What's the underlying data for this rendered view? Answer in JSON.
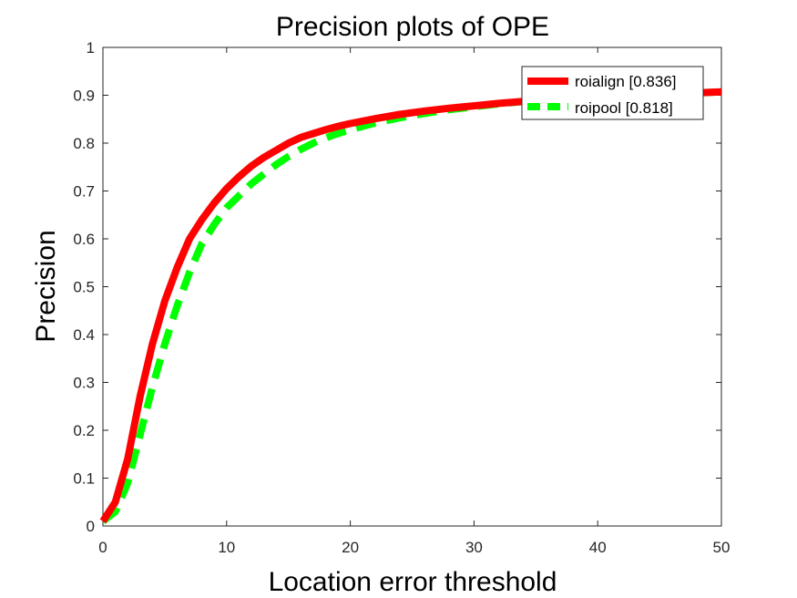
{
  "chart_data": {
    "type": "line",
    "title": "Precision plots of OPE",
    "xlabel": "Location error threshold",
    "ylabel": "Precision",
    "xlim": [
      0,
      50
    ],
    "ylim": [
      0,
      1
    ],
    "xticks": [
      "0",
      "10",
      "20",
      "30",
      "40",
      "50"
    ],
    "yticks": [
      "0",
      "0.1",
      "0.2",
      "0.3",
      "0.4",
      "0.5",
      "0.6",
      "0.7",
      "0.8",
      "0.9",
      "1"
    ],
    "grid": false,
    "legend_position": "top-right",
    "series": [
      {
        "name": "roialign [0.836]",
        "color": "#ff0000",
        "style": "solid",
        "x": [
          0,
          1,
          2,
          3,
          4,
          5,
          6,
          7,
          8,
          9,
          10,
          11,
          12,
          13,
          14,
          15,
          16,
          17,
          18,
          19,
          20,
          22,
          24,
          26,
          28,
          30,
          32,
          34,
          36,
          38,
          40,
          42,
          44,
          46,
          48,
          50
        ],
        "y": [
          0.01,
          0.05,
          0.14,
          0.27,
          0.38,
          0.47,
          0.54,
          0.6,
          0.64,
          0.675,
          0.705,
          0.73,
          0.752,
          0.77,
          0.785,
          0.8,
          0.812,
          0.82,
          0.828,
          0.835,
          0.841,
          0.851,
          0.86,
          0.867,
          0.873,
          0.878,
          0.883,
          0.887,
          0.891,
          0.894,
          0.897,
          0.899,
          0.901,
          0.903,
          0.905,
          0.907
        ]
      },
      {
        "name": "roipool [0.818]",
        "color": "#00ff00",
        "style": "dashed",
        "x": [
          0,
          1,
          2,
          3,
          4,
          5,
          6,
          7,
          8,
          9,
          10,
          11,
          12,
          13,
          14,
          15,
          16,
          17,
          18,
          19,
          20,
          22,
          24,
          26,
          28,
          30,
          32,
          34,
          36,
          38,
          40,
          42,
          44,
          46,
          48,
          50
        ],
        "y": [
          0.01,
          0.03,
          0.09,
          0.19,
          0.29,
          0.38,
          0.46,
          0.53,
          0.59,
          0.63,
          0.665,
          0.69,
          0.715,
          0.735,
          0.755,
          0.772,
          0.787,
          0.8,
          0.811,
          0.82,
          0.828,
          0.842,
          0.853,
          0.862,
          0.87,
          0.876,
          0.882,
          0.887,
          0.891,
          0.894,
          0.897,
          0.899,
          0.901,
          0.903,
          0.905,
          0.907
        ]
      }
    ]
  }
}
